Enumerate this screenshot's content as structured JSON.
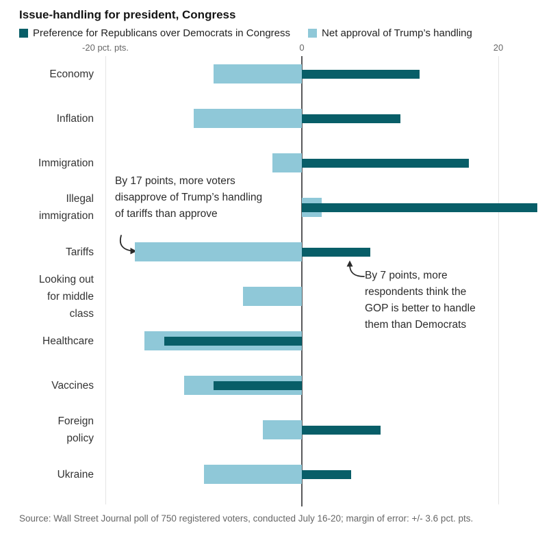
{
  "title": "Issue-handling for president, Congress",
  "legend": [
    {
      "name": "gop",
      "label": "Preference for Republicans over Democrats in Congress",
      "color": "#085e68"
    },
    {
      "name": "approval",
      "label": "Net approval of Trump’s handling",
      "color": "#8fc8d8"
    }
  ],
  "axis": {
    "ticks": [
      {
        "value": -20,
        "label": "-20 pct. pts."
      },
      {
        "value": 0,
        "label": "0"
      },
      {
        "value": 20,
        "label": "20"
      }
    ],
    "unit": "pct. pts."
  },
  "chart_data": {
    "type": "bar",
    "orientation": "horizontal",
    "title": "Issue-handling for president, Congress",
    "xlim": [
      -20.5,
      24.8
    ],
    "grid": "vertical-at-ticks",
    "legend_position": "top",
    "categories": [
      "Economy",
      "Inflation",
      "Immigration",
      "Illegal immigration",
      "Tariffs",
      "Looking out for middle class",
      "Healthcare",
      "Vaccines",
      "Foreign policy",
      "Ukraine"
    ],
    "category_label_lines": [
      [
        "Economy"
      ],
      [
        "Inflation"
      ],
      [
        "Immigration"
      ],
      [
        "Illegal",
        "immigration"
      ],
      [
        "Tariffs"
      ],
      [
        "Looking out",
        "for middle",
        "class"
      ],
      [
        "Healthcare"
      ],
      [
        "Vaccines"
      ],
      [
        "Foreign",
        "policy"
      ],
      [
        "Ukraine"
      ]
    ],
    "series": [
      {
        "name": "Preference for Republicans over Democrats in Congress",
        "color": "#085e68",
        "values": [
          12,
          10,
          17,
          24,
          7,
          0,
          -14,
          -9,
          8,
          5
        ]
      },
      {
        "name": "Net approval of Trump’s handling",
        "color": "#8fc8d8",
        "values": [
          -9,
          -11,
          -3,
          2,
          -17,
          -6,
          -16,
          -12,
          -4,
          -10
        ]
      }
    ]
  },
  "annotations": [
    {
      "text": "By 17 points, more voters disapprove of Trump’s handling of tariffs than approve"
    },
    {
      "text": "By 7 points, more respondents think the GOP is better to handle them than Democrats"
    }
  ],
  "source": "Source: Wall Street Journal poll of 750 registered voters, conducted July 16-20; margin of error: +/- 3.6 pct. pts."
}
